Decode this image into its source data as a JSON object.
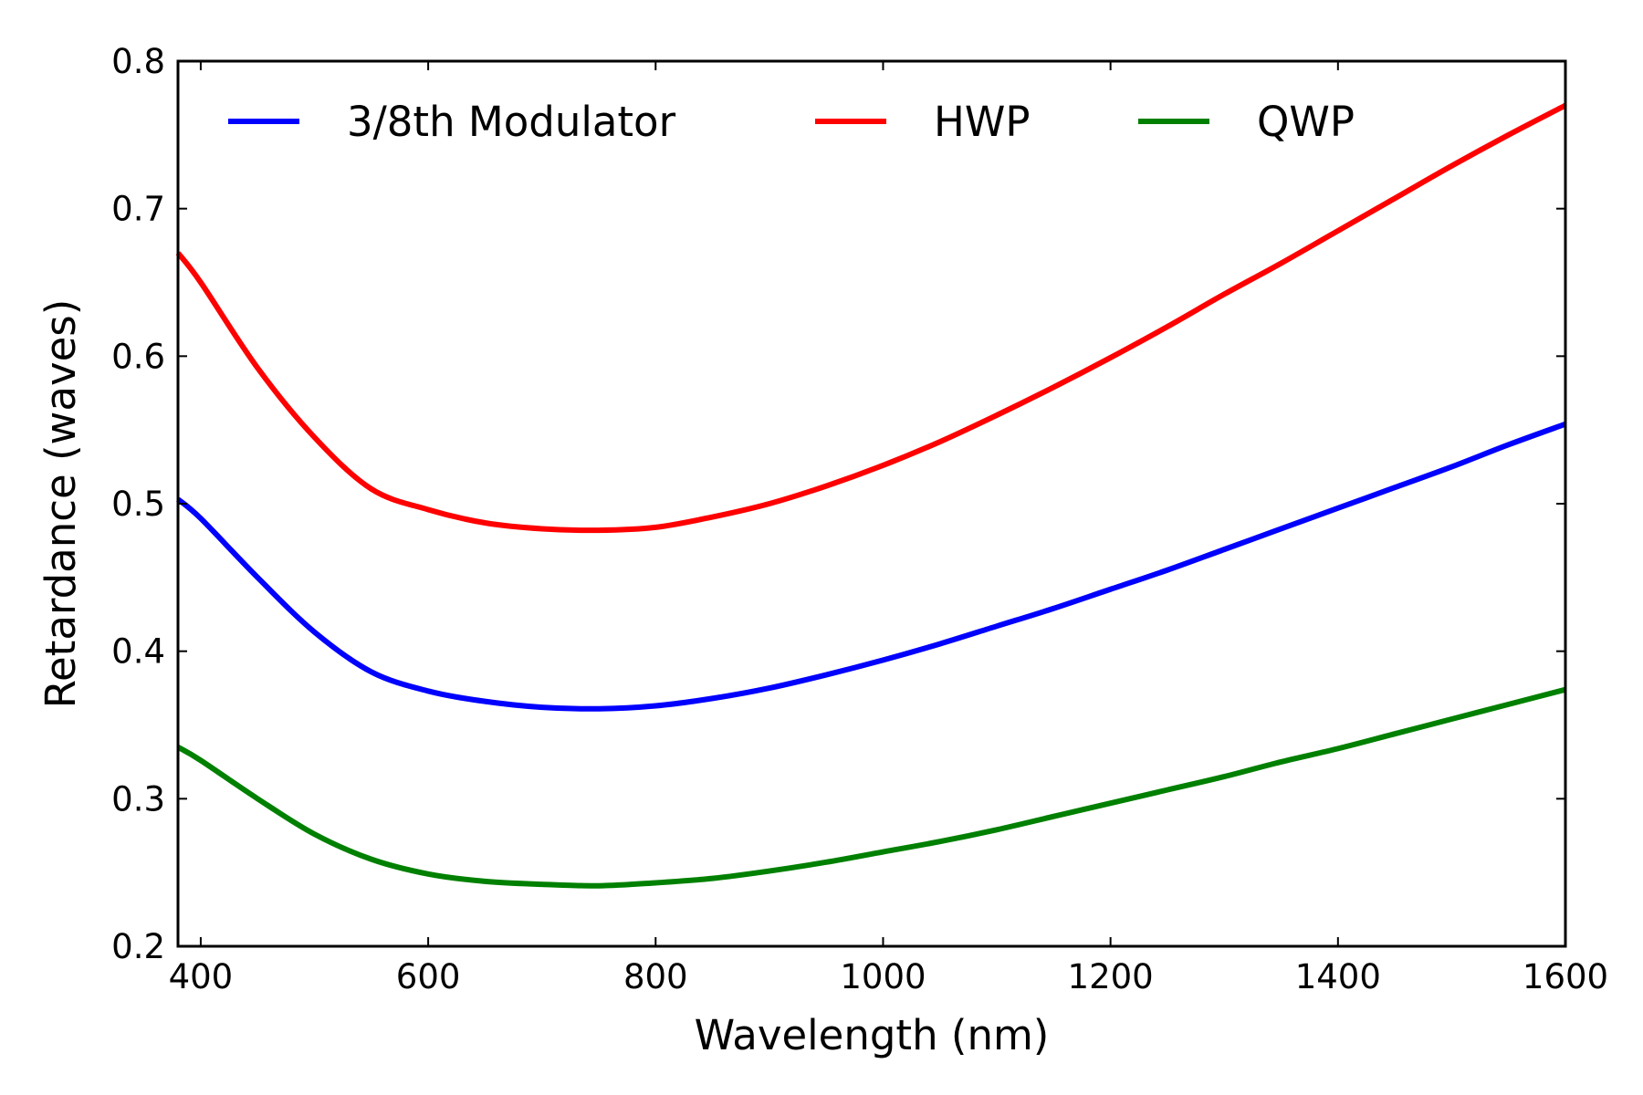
{
  "chart_data": {
    "type": "line",
    "title": "",
    "xlabel": "Wavelength (nm)",
    "ylabel": "Retardance (waves)",
    "xlim": [
      380,
      1600
    ],
    "ylim": [
      0.2,
      0.8
    ],
    "xticks": [
      400,
      600,
      800,
      1000,
      1200,
      1400,
      1600
    ],
    "xtick_labels": [
      "400",
      "600",
      "800",
      "1000",
      "1200",
      "1400",
      "1600"
    ],
    "yticks": [
      0.2,
      0.3,
      0.4,
      0.5,
      0.6,
      0.7,
      0.8
    ],
    "ytick_labels": [
      "0.2",
      "0.3",
      "0.4",
      "0.5",
      "0.6",
      "0.7",
      "0.8"
    ],
    "grid": false,
    "legend_position": "top",
    "x": [
      380,
      400,
      450,
      500,
      550,
      600,
      650,
      700,
      750,
      800,
      850,
      900,
      950,
      1000,
      1050,
      1100,
      1150,
      1200,
      1250,
      1300,
      1350,
      1400,
      1450,
      1500,
      1550,
      1600
    ],
    "series": [
      {
        "name": "3/8th Modulator",
        "color": "#0000ff",
        "values": [
          0.503,
          0.49,
          0.45,
          0.413,
          0.386,
          0.373,
          0.366,
          0.362,
          0.361,
          0.363,
          0.368,
          0.375,
          0.384,
          0.394,
          0.405,
          0.417,
          0.429,
          0.442,
          0.455,
          0.469,
          0.483,
          0.497,
          0.511,
          0.525,
          0.54,
          0.554
        ]
      },
      {
        "name": "HWP",
        "color": "#ff0000",
        "values": [
          0.67,
          0.65,
          0.592,
          0.545,
          0.51,
          0.496,
          0.487,
          0.483,
          0.482,
          0.484,
          0.491,
          0.5,
          0.512,
          0.526,
          0.542,
          0.56,
          0.579,
          0.599,
          0.62,
          0.642,
          0.663,
          0.685,
          0.707,
          0.729,
          0.75,
          0.77
        ]
      },
      {
        "name": "QWP",
        "color": "#008000",
        "values": [
          0.335,
          0.326,
          0.3,
          0.276,
          0.259,
          0.249,
          0.244,
          0.242,
          0.241,
          0.243,
          0.246,
          0.251,
          0.257,
          0.264,
          0.271,
          0.279,
          0.288,
          0.297,
          0.306,
          0.315,
          0.325,
          0.334,
          0.344,
          0.354,
          0.364,
          0.374
        ]
      }
    ]
  }
}
